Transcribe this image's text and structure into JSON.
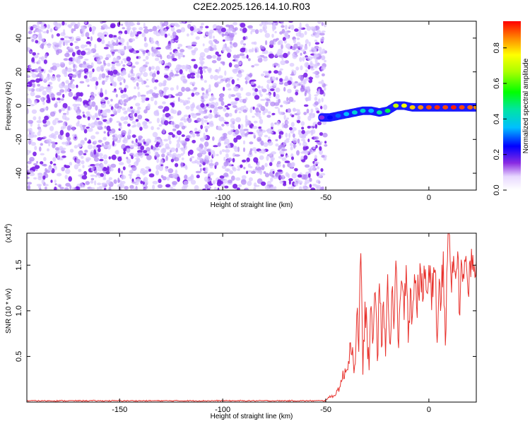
{
  "title": "C2E2.2025.126.14.10.R03",
  "chart_data": [
    {
      "type": "heatmap",
      "title": "C2E2.2025.126.14.10.R03",
      "xlabel": "Height of straight line (km)",
      "ylabel": "Frequency (Hz)",
      "xlim": [
        -195,
        23
      ],
      "ylim": [
        -50,
        50
      ],
      "x_ticks": [
        -150,
        -100,
        -50,
        0
      ],
      "x_tick_labels": [
        "-150",
        "-100",
        "-50",
        "0"
      ],
      "y_ticks": [
        -40,
        -20,
        0,
        20,
        40
      ],
      "y_tick_labels": [
        "-40",
        "-20",
        "0",
        "20",
        "40"
      ],
      "colorbar": {
        "label": "Normalized spectral amplitude",
        "range": [
          0,
          0.95
        ],
        "ticks": [
          0.0,
          0.2,
          0.4,
          0.6,
          0.8
        ],
        "tick_labels": [
          "0.0",
          "0.2",
          "0.4",
          "0.6",
          "0.8"
        ]
      },
      "noise_region": {
        "x_range": [
          -195,
          -50
        ],
        "amplitude_range": [
          0.0,
          0.25
        ]
      },
      "signal_trace": {
        "x": [
          -52,
          -48,
          -44,
          -40,
          -36,
          -32,
          -28,
          -24,
          -20,
          -16,
          -12,
          -8,
          -4,
          0,
          4,
          8,
          12,
          16,
          20,
          23
        ],
        "frequency": [
          -7,
          -7,
          -6,
          -5,
          -4,
          -3,
          -3,
          -4,
          -3,
          0,
          0,
          -1,
          -1,
          -1,
          -1,
          -1,
          -1,
          -1,
          -1,
          -1
        ],
        "amplitude": [
          0.15,
          0.25,
          0.3,
          0.35,
          0.4,
          0.4,
          0.35,
          0.45,
          0.5,
          0.7,
          0.75,
          0.8,
          0.85,
          0.9,
          0.92,
          0.9,
          0.93,
          0.9,
          0.88,
          0.85
        ]
      }
    },
    {
      "type": "line",
      "xlabel": "Height of straight line (km)",
      "ylabel": "SNR (10 * v/v)",
      "y_multiplier_label": "(x10",
      "y_multiplier_exp": "4",
      "y_multiplier_close": ")",
      "xlim": [
        -195,
        23
      ],
      "ylim": [
        0,
        18500
      ],
      "x_ticks": [
        -150,
        -100,
        -50,
        0
      ],
      "x_tick_labels": [
        "-150",
        "-100",
        "-50",
        "0"
      ],
      "y_ticks": [
        5000,
        10000,
        15000
      ],
      "y_tick_labels": [
        "0.5",
        "1.0",
        "1.5"
      ],
      "series": [
        {
          "color": "#e8322d",
          "x": [
            -195,
            -60,
            -50,
            -45,
            -42,
            -40,
            -38,
            -36,
            -35,
            -34,
            -33,
            -32,
            -31,
            -30,
            -29,
            -28,
            -27,
            -26,
            -25,
            -24,
            -23,
            -22,
            -21,
            -20,
            -19,
            -18,
            -17,
            -16,
            -15,
            -14,
            -13,
            -12,
            -11,
            -10,
            -9,
            -8,
            -7,
            -6,
            -5,
            -4,
            -3,
            -2,
            -1,
            0,
            1,
            2,
            3,
            4,
            5,
            6,
            7,
            8,
            9,
            10,
            11,
            12,
            13,
            14,
            15,
            16,
            17,
            18,
            19,
            20,
            21,
            22,
            23
          ],
          "y": [
            150,
            150,
            300,
            900,
            2500,
            3500,
            6500,
            4000,
            9500,
            5500,
            16300,
            3000,
            11000,
            8000,
            3500,
            10500,
            7000,
            12000,
            4500,
            13000,
            6000,
            11000,
            5000,
            14000,
            6500,
            12000,
            8000,
            15500,
            7000,
            11000,
            13000,
            9000,
            15000,
            6500,
            12500,
            9500,
            14000,
            10500,
            12000,
            14500,
            11000,
            13500,
            12000,
            15000,
            13000,
            11500,
            14500,
            6500,
            13500,
            11000,
            16500,
            6200,
            15500,
            18300,
            12000,
            16000,
            13500,
            16500,
            9500,
            15000,
            13500,
            16000,
            12000,
            15500,
            14500,
            15000,
            15500
          ]
        }
      ]
    }
  ]
}
